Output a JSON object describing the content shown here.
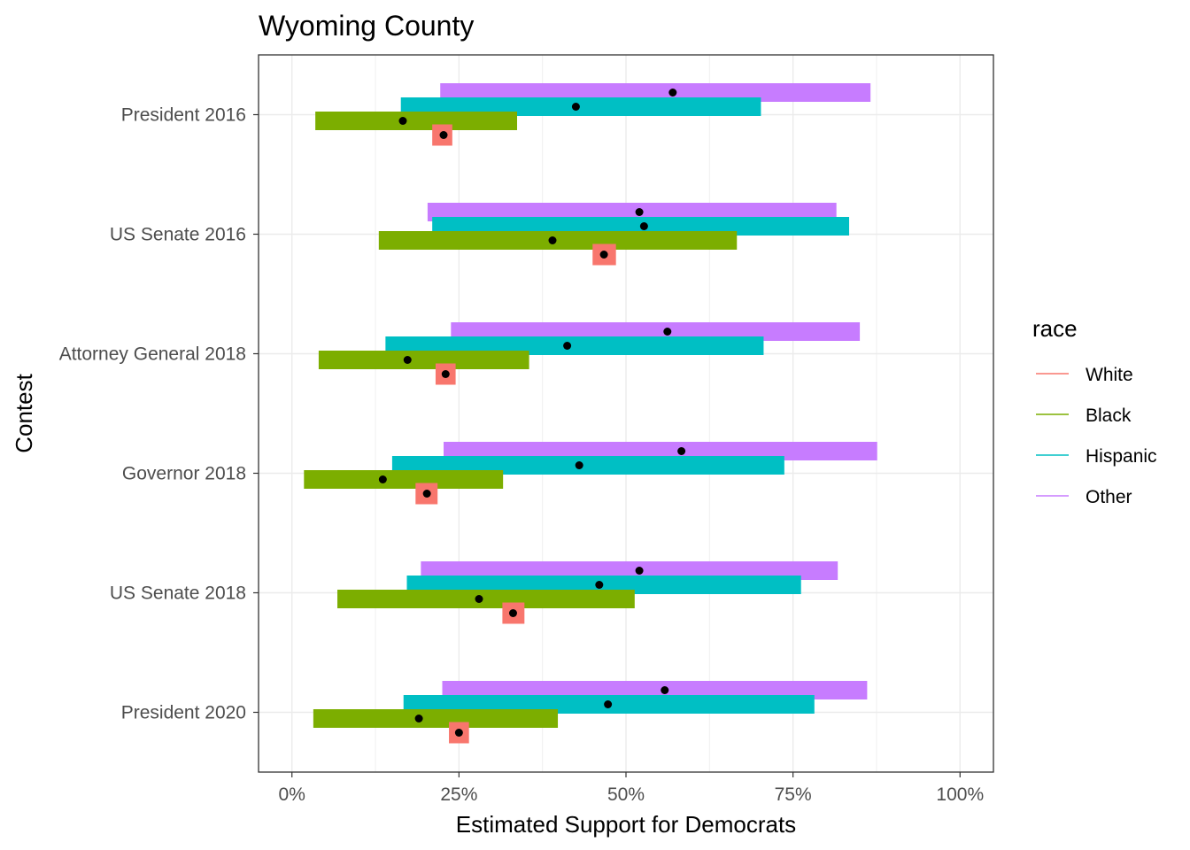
{
  "chart_data": {
    "type": "bar",
    "subtype": "horizontal range bars with point estimates, dodged by race",
    "title": "Wyoming County",
    "xlabel": "Estimated Support for Democrats",
    "ylabel": "Contest",
    "xlim": [
      -0.05,
      1.05
    ],
    "x_ticks": [
      {
        "value": 0,
        "label": "0%"
      },
      {
        "value": 0.25,
        "label": "25%"
      },
      {
        "value": 0.5,
        "label": "50%"
      },
      {
        "value": 0.75,
        "label": "75%"
      },
      {
        "value": 1,
        "label": "100%"
      }
    ],
    "categories": [
      "President 2016",
      "US Senate 2016",
      "Attorney General 2018",
      "Governor 2018",
      "US Senate 2018",
      "President 2020"
    ],
    "grid": true,
    "legend": {
      "title": "race",
      "position": "right"
    },
    "series": [
      {
        "name": "White",
        "color": "#F8766D",
        "low": [
          0.21,
          0.45,
          0.215,
          0.185,
          0.315,
          0.235
        ],
        "high": [
          0.24,
          0.485,
          0.245,
          0.218,
          0.348,
          0.265
        ],
        "estimate": [
          0.227,
          0.467,
          0.23,
          0.202,
          0.331,
          0.25
        ]
      },
      {
        "name": "Black",
        "color": "#7CAE00",
        "low": [
          0.035,
          0.13,
          0.04,
          0.018,
          0.068,
          0.032
        ],
        "high": [
          0.337,
          0.666,
          0.355,
          0.316,
          0.513,
          0.398
        ],
        "estimate": [
          0.166,
          0.39,
          0.173,
          0.136,
          0.28,
          0.19
        ]
      },
      {
        "name": "Hispanic",
        "color": "#00BFC4",
        "low": [
          0.163,
          0.21,
          0.14,
          0.15,
          0.172,
          0.167
        ],
        "high": [
          0.702,
          0.834,
          0.706,
          0.737,
          0.762,
          0.782
        ],
        "estimate": [
          0.425,
          0.527,
          0.412,
          0.43,
          0.46,
          0.473
        ]
      },
      {
        "name": "Other",
        "color": "#C77CFF",
        "low": [
          0.222,
          0.203,
          0.238,
          0.227,
          0.193,
          0.225
        ],
        "high": [
          0.866,
          0.815,
          0.85,
          0.876,
          0.817,
          0.861
        ],
        "estimate": [
          0.57,
          0.52,
          0.562,
          0.583,
          0.52,
          0.558
        ]
      }
    ]
  }
}
